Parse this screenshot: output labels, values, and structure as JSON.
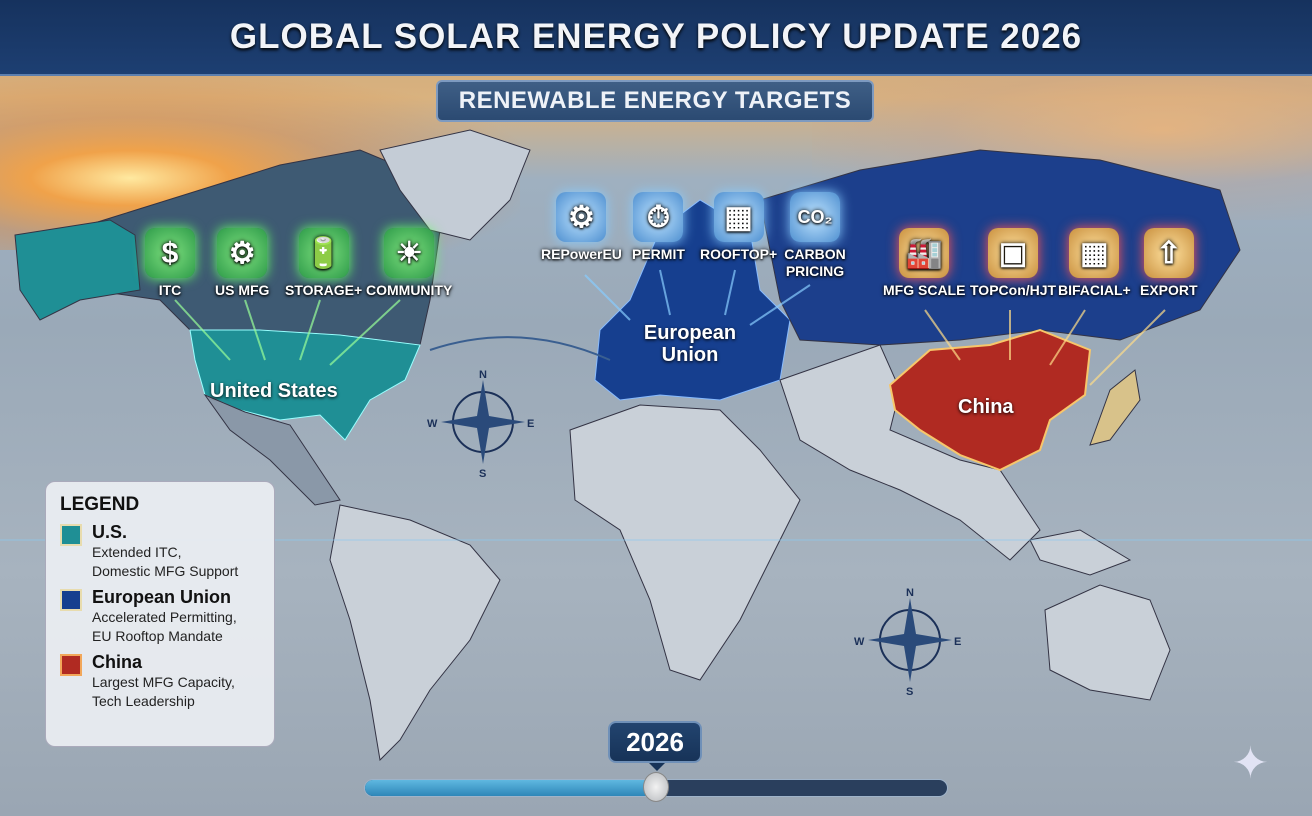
{
  "header": {
    "title": "GLOBAL SOLAR ENERGY POLICY UPDATE 2026",
    "subtitle": "RENEWABLE ENERGY TARGETS"
  },
  "colors": {
    "us": "#1f8f95",
    "eu": "#163f8f",
    "china": "#b02a22",
    "title_bar": "#1a3868"
  },
  "regions": {
    "us": "United States",
    "eu": "European Union",
    "china": "China"
  },
  "policy_icons": {
    "us": [
      {
        "label": "ITC",
        "icon": "shield-dollar-percent"
      },
      {
        "label": "US MFG",
        "icon": "gear-us-flag"
      },
      {
        "label": "STORAGE+",
        "icon": "solar-panel-battery"
      },
      {
        "label": "COMMUNITY",
        "icon": "community-solar"
      }
    ],
    "eu": [
      {
        "label": "REPowerEU",
        "icon": "gear-wind-turbine"
      },
      {
        "label": "PERMIT",
        "icon": "stopwatch"
      },
      {
        "label": "ROOFTOP+",
        "icon": "building-solar-roof"
      },
      {
        "label": "CARBON PRICING",
        "icon": "co2-cloud-arrow"
      }
    ],
    "china": [
      {
        "label": "MFG SCALE",
        "icon": "factory"
      },
      {
        "label": "TOPCon/HJT",
        "icon": "solar-cell"
      },
      {
        "label": "BIFACIAL+",
        "icon": "solar-panel-grid"
      },
      {
        "label": "EXPORT",
        "icon": "shipping-container-arrow"
      }
    ]
  },
  "compass": {
    "n": "N",
    "e": "E",
    "s": "S",
    "w": "W"
  },
  "legend": {
    "title": "LEGEND",
    "items": [
      {
        "name": "U.S.",
        "desc1": "Extended ITC,",
        "desc2": "Domestic MFG Support",
        "color": "#1f8f95"
      },
      {
        "name": "European Union",
        "desc1": "Accelerated Permitting,",
        "desc2": "EU Rooftop Mandate",
        "color": "#163f8f"
      },
      {
        "name": "China",
        "desc1": "Largest MFG Capacity,",
        "desc2": "Tech Leadership",
        "color": "#b02a22"
      }
    ]
  },
  "timeline": {
    "year": "2026",
    "progress_fraction": 0.5
  }
}
